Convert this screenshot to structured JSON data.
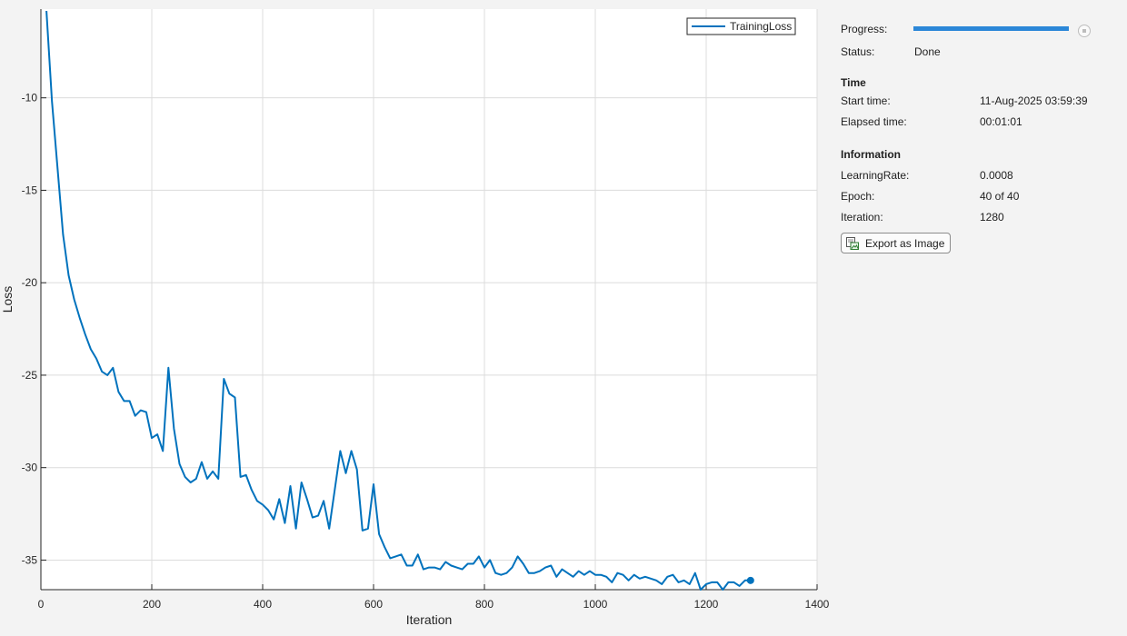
{
  "panel": {
    "progress_label": "Progress:",
    "progress_fraction": 1.0,
    "status_label": "Status:",
    "status_value": "Done",
    "time_heading": "Time",
    "start_time_label": "Start time:",
    "start_time_value": "11-Aug-2025 03:59:39",
    "elapsed_time_label": "Elapsed time:",
    "elapsed_time_value": "00:01:01",
    "info_heading": "Information",
    "learning_rate_label": "LearningRate:",
    "learning_rate_value": "0.0008",
    "epoch_label": "Epoch:",
    "epoch_value": "40 of 40",
    "iteration_label": "Iteration:",
    "iteration_value": "1280",
    "export_label": "Export as Image",
    "export_icon": "export-image-icon",
    "stop_icon": "stop-icon"
  },
  "colors": {
    "series": "#0072bd",
    "progress": "#2b87d8",
    "grid": "#dcdcdc",
    "plot_bg": "#ffffff",
    "panel_bg": "#f3f3f3"
  },
  "chart_data": {
    "type": "line",
    "xlabel": "Iteration",
    "ylabel": "Loss",
    "xlim": [
      0,
      1400
    ],
    "ylim": [
      -36.6,
      -5.2
    ],
    "xticks": [
      0,
      200,
      400,
      600,
      800,
      1000,
      1200,
      1400
    ],
    "yticks": [
      -35,
      -30,
      -25,
      -20,
      -15,
      -10
    ],
    "grid": true,
    "legend_position": "top-right",
    "series": [
      {
        "name": "TrainingLoss",
        "color": "#0072bd",
        "final_marker": true,
        "x": [
          10,
          20,
          30,
          40,
          50,
          60,
          70,
          80,
          90,
          100,
          110,
          120,
          130,
          140,
          150,
          160,
          170,
          180,
          190,
          200,
          210,
          220,
          230,
          240,
          250,
          260,
          270,
          280,
          290,
          300,
          310,
          320,
          330,
          340,
          350,
          360,
          370,
          380,
          390,
          400,
          410,
          420,
          430,
          440,
          450,
          460,
          470,
          480,
          490,
          500,
          510,
          520,
          530,
          540,
          550,
          560,
          570,
          580,
          590,
          600,
          610,
          620,
          630,
          640,
          650,
          660,
          670,
          680,
          690,
          700,
          710,
          720,
          730,
          740,
          750,
          760,
          770,
          780,
          790,
          800,
          810,
          820,
          830,
          840,
          850,
          860,
          870,
          880,
          890,
          900,
          910,
          920,
          930,
          940,
          950,
          960,
          970,
          980,
          990,
          1000,
          1010,
          1020,
          1030,
          1040,
          1050,
          1060,
          1070,
          1080,
          1090,
          1100,
          1110,
          1120,
          1130,
          1140,
          1150,
          1160,
          1170,
          1180,
          1190,
          1200,
          1210,
          1220,
          1230,
          1240,
          1250,
          1260,
          1270,
          1280
        ],
        "y": [
          -5.3,
          -10.2,
          -13.8,
          -17.4,
          -19.6,
          -20.9,
          -21.9,
          -22.8,
          -23.6,
          -24.1,
          -24.8,
          -25.0,
          -24.6,
          -25.9,
          -26.4,
          -26.4,
          -27.2,
          -26.9,
          -27.0,
          -28.4,
          -28.2,
          -29.1,
          -24.6,
          -27.9,
          -29.8,
          -30.5,
          -30.8,
          -30.6,
          -29.7,
          -30.6,
          -30.2,
          -30.6,
          -25.2,
          -26.0,
          -26.2,
          -30.5,
          -30.4,
          -31.2,
          -31.8,
          -32.0,
          -32.3,
          -32.8,
          -31.7,
          -33.0,
          -31.0,
          -33.3,
          -30.8,
          -31.7,
          -32.7,
          -32.6,
          -31.8,
          -33.3,
          -31.2,
          -29.1,
          -30.3,
          -29.1,
          -30.1,
          -33.4,
          -33.3,
          -30.9,
          -33.6,
          -34.3,
          -34.9,
          -34.8,
          -34.7,
          -35.3,
          -35.3,
          -34.7,
          -35.5,
          -35.4,
          -35.4,
          -35.5,
          -35.1,
          -35.3,
          -35.4,
          -35.5,
          -35.2,
          -35.2,
          -34.8,
          -35.4,
          -35.0,
          -35.7,
          -35.8,
          -35.7,
          -35.4,
          -34.8,
          -35.2,
          -35.7,
          -35.7,
          -35.6,
          -35.4,
          -35.3,
          -35.9,
          -35.5,
          -35.7,
          -35.9,
          -35.6,
          -35.8,
          -35.6,
          -35.8,
          -35.8,
          -35.9,
          -36.2,
          -35.7,
          -35.8,
          -36.1,
          -35.8,
          -36.0,
          -35.9,
          -36.0,
          -36.1,
          -36.3,
          -35.9,
          -35.8,
          -36.2,
          -36.1,
          -36.3,
          -35.7,
          -36.6,
          -36.3,
          -36.2,
          -36.2,
          -36.6,
          -36.2,
          -36.2,
          -36.4,
          -36.1,
          -36.1
        ]
      }
    ]
  }
}
